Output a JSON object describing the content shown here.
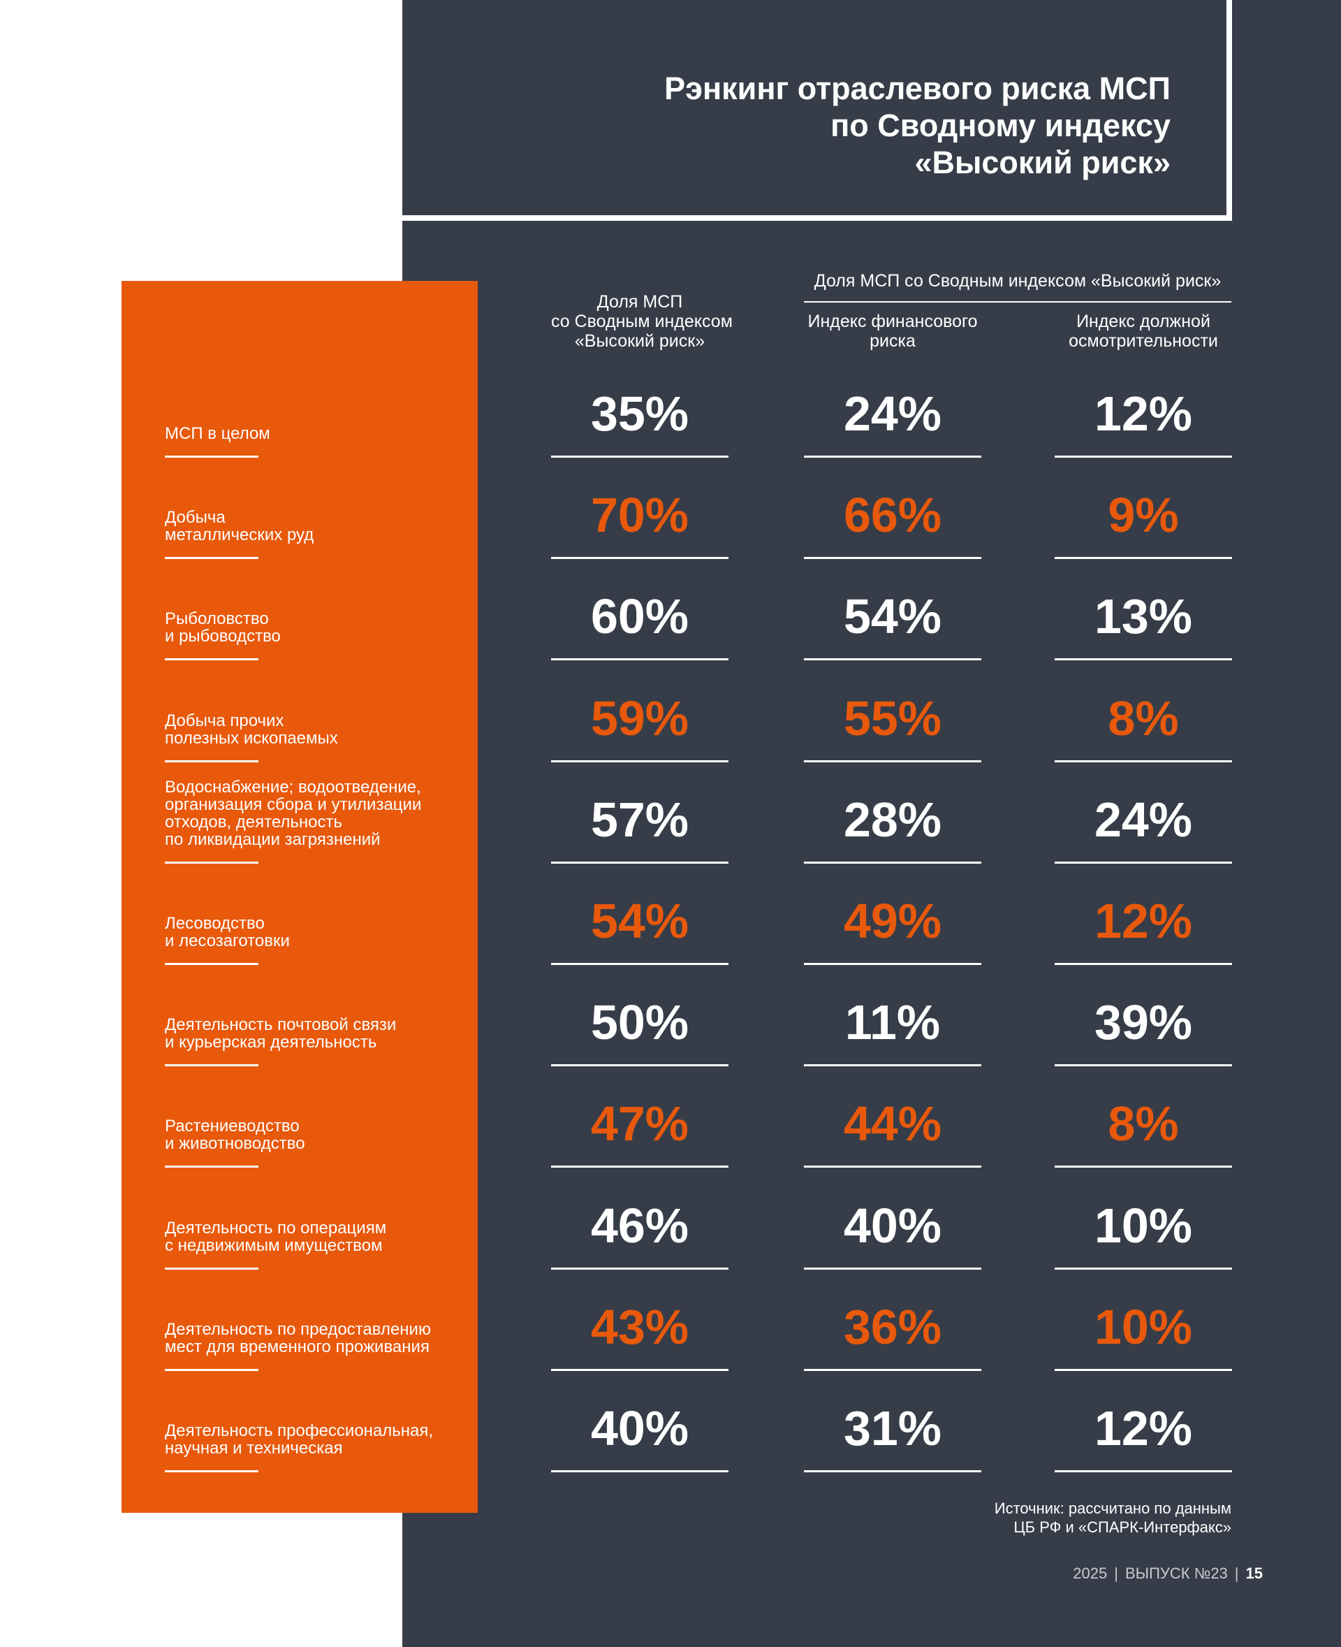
{
  "title": {
    "line1": "Рэнкинг отраслевого риска МСП",
    "line2": "по Сводному индексу",
    "line3": "«Высокий риск»"
  },
  "headers": {
    "col1": [
      "Доля МСП",
      "со Сводным индексом",
      "«Высокий риск»"
    ],
    "group": "Доля МСП со Сводным индексом «Высокий риск»",
    "col2": [
      "Индекс финансового",
      "риска"
    ],
    "col3": [
      "Индекс должной",
      "осмотрительности"
    ]
  },
  "rows": [
    {
      "label": [
        "МСП в целом"
      ],
      "v1": "35%",
      "v2": "24%",
      "v3": "12%",
      "highlight": false
    },
    {
      "label": [
        "Добыча",
        "металлических руд"
      ],
      "v1": "70%",
      "v2": "66%",
      "v3": "9%",
      "highlight": true
    },
    {
      "label": [
        "Рыболовство",
        "и рыбоводство"
      ],
      "v1": "60%",
      "v2": "54%",
      "v3": "13%",
      "highlight": false
    },
    {
      "label": [
        "Добыча прочих",
        "полезных ископаемых"
      ],
      "v1": "59%",
      "v2": "55%",
      "v3": "8%",
      "highlight": true
    },
    {
      "label": [
        "Водоснабжение; водоотведение,",
        "организация сбора и утилизации",
        "отходов, деятельность",
        "по ликвидации загрязнений"
      ],
      "v1": "57%",
      "v2": "28%",
      "v3": "24%",
      "highlight": false
    },
    {
      "label": [
        "Лесоводство",
        "и лесозаготовки"
      ],
      "v1": "54%",
      "v2": "49%",
      "v3": "12%",
      "highlight": true
    },
    {
      "label": [
        "Деятельность почтовой связи",
        "и курьерская деятельность"
      ],
      "v1": "50%",
      "v2": "11%",
      "v3": "39%",
      "highlight": false
    },
    {
      "label": [
        "Растениеводство",
        "и животноводство"
      ],
      "v1": "47%",
      "v2": "44%",
      "v3": "8%",
      "highlight": true
    },
    {
      "label": [
        "Деятельность по операциям",
        "с недвижимым имуществом"
      ],
      "v1": "46%",
      "v2": "40%",
      "v3": "10%",
      "highlight": false
    },
    {
      "label": [
        "Деятельность по предоставлению",
        "мест для временного проживания"
      ],
      "v1": "43%",
      "v2": "36%",
      "v3": "10%",
      "highlight": true
    },
    {
      "label": [
        "Деятельность профессиональная,",
        "научная и техническая"
      ],
      "v1": "40%",
      "v2": "31%",
      "v3": "12%",
      "highlight": false
    }
  ],
  "source": {
    "line1": "Источник: рассчитано по данным",
    "line2": "ЦБ РФ и «СПАРК-Интерфакс»"
  },
  "footer": {
    "year": "2025",
    "issue": "ВЫПУСК №23",
    "page": "15"
  }
}
